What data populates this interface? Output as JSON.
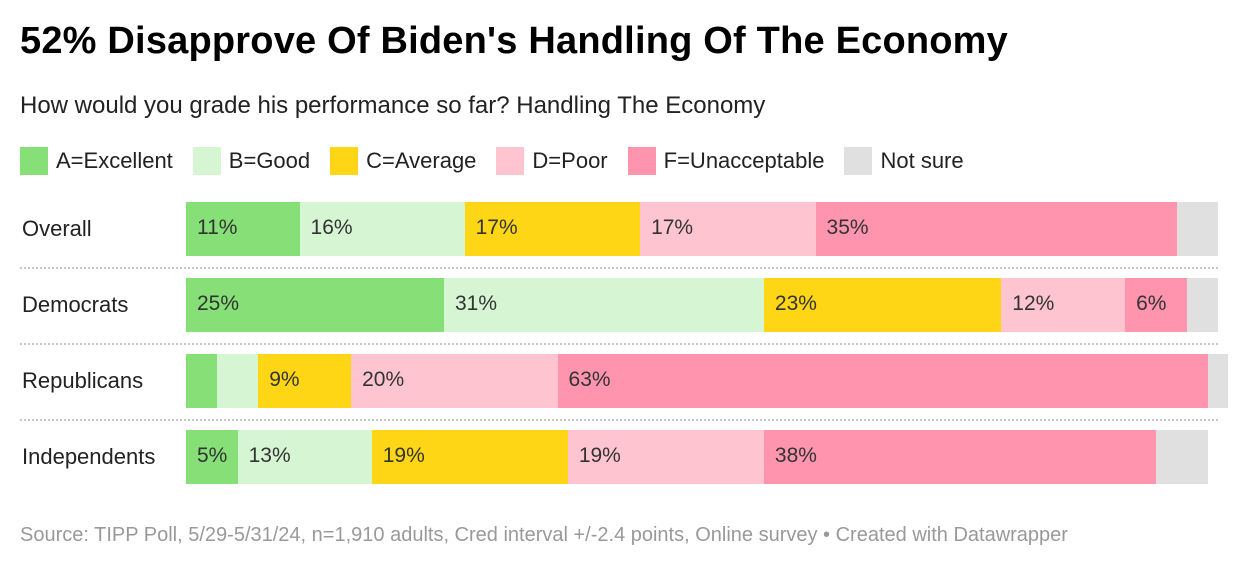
{
  "title": "52% Disapprove Of Biden's Handling Of The Economy",
  "subtitle": "How would you grade his performance so far? Handling The Economy",
  "source": "Source: TIPP Poll, 5/29-5/31/24, n=1,910 adults, Cred interval +/-2.4 points, Online survey • Created with Datawrapper",
  "legend": [
    {
      "label": "A=Excellent",
      "color": "#86e077"
    },
    {
      "label": "B=Good",
      "color": "#d6f5d3"
    },
    {
      "label": "C=Average",
      "color": "#fed615"
    },
    {
      "label": "D=Poor",
      "color": "#fec5d0"
    },
    {
      "label": "F=Unacceptable",
      "color": "#fe94ad"
    },
    {
      "label": "Not sure",
      "color": "#e0e0e0"
    }
  ],
  "chart_data": {
    "type": "bar",
    "orientation": "horizontal-stacked-100",
    "title": "52% Disapprove Of Biden's Handling Of The Economy",
    "subtitle": "How would you grade his performance so far? Handling The Economy",
    "categories": [
      "Overall",
      "Democrats",
      "Republicans",
      "Independents"
    ],
    "series": [
      {
        "name": "A=Excellent",
        "color": "#86e077",
        "values": [
          11,
          25,
          3,
          5
        ],
        "labels": [
          "11%",
          "25%",
          "",
          "5%"
        ]
      },
      {
        "name": "B=Good",
        "color": "#d6f5d3",
        "values": [
          16,
          31,
          4,
          13
        ],
        "labels": [
          "16%",
          "31%",
          "",
          "13%"
        ]
      },
      {
        "name": "C=Average",
        "color": "#fed615",
        "values": [
          17,
          23,
          9,
          19
        ],
        "labels": [
          "17%",
          "23%",
          "9%",
          "19%"
        ]
      },
      {
        "name": "D=Poor",
        "color": "#fec5d0",
        "values": [
          17,
          12,
          20,
          19
        ],
        "labels": [
          "17%",
          "12%",
          "20%",
          "19%"
        ]
      },
      {
        "name": "F=Unacceptable",
        "color": "#fe94ad",
        "values": [
          35,
          6,
          63,
          38
        ],
        "labels": [
          "35%",
          "6%",
          "63%",
          "38%"
        ]
      },
      {
        "name": "Not sure",
        "color": "#e0e0e0",
        "values": [
          4,
          3,
          2,
          5
        ],
        "labels": [
          "",
          "",
          "",
          ""
        ]
      }
    ],
    "xlim": [
      0,
      100
    ]
  }
}
